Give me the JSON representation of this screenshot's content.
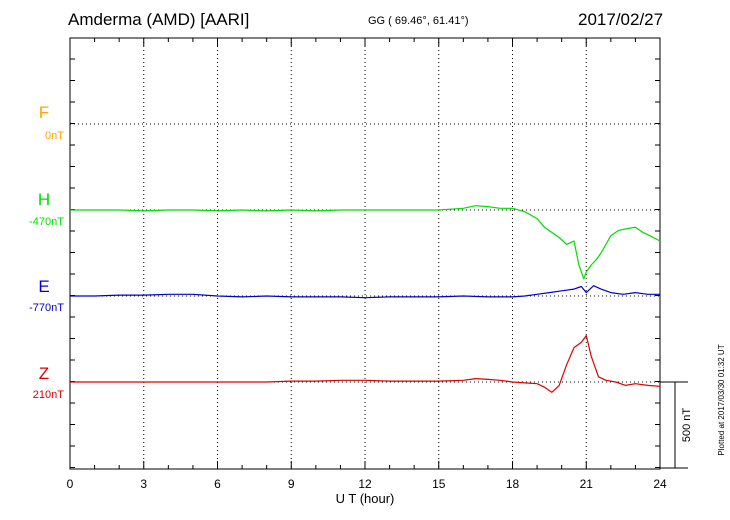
{
  "header": {
    "station": "Amderma (AMD)  [AARI]",
    "coords": "GG ( 69.46°,  61.41°)",
    "date": "2017/02/27"
  },
  "footer": {
    "plotted_at": "Plotted at 2017/03/30 01:32 UT"
  },
  "scale_bar": {
    "label": "500 nT"
  },
  "colors": {
    "F": "#ffa500",
    "H": "#00dd00",
    "E": "#0000cc",
    "Z": "#dd0000",
    "axis": "#000000"
  },
  "chart_data": {
    "type": "line",
    "xlabel": "U T (hour)",
    "xlim": [
      0,
      24
    ],
    "x_ticks": [
      0,
      3,
      6,
      9,
      12,
      15,
      18,
      21,
      24
    ],
    "grid": true,
    "series": [
      {
        "name": "F",
        "offset_label": "0nT",
        "key": "F",
        "x": [],
        "y": []
      },
      {
        "name": "H",
        "offset_label": "-470nT",
        "key": "H",
        "x": [
          0,
          1,
          2,
          3,
          4,
          5,
          6,
          7,
          8,
          9,
          10,
          11,
          12,
          13,
          14,
          15,
          16,
          16.5,
          17,
          17.5,
          18,
          18.5,
          19,
          19.3,
          19.6,
          19.9,
          20.2,
          20.5,
          20.7,
          20.9,
          21.0,
          21.2,
          21.4,
          21.6,
          21.8,
          22.0,
          22.3,
          22.6,
          23.0,
          23.3,
          23.6,
          24
        ],
        "y": [
          0,
          0,
          0,
          -5,
          0,
          0,
          -5,
          0,
          -5,
          0,
          -5,
          0,
          0,
          0,
          0,
          0,
          10,
          25,
          20,
          10,
          10,
          -10,
          -50,
          -100,
          -130,
          -160,
          -200,
          -180,
          -320,
          -400,
          -360,
          -320,
          -290,
          -250,
          -200,
          -150,
          -120,
          -110,
          -100,
          -130,
          -150,
          -180
        ]
      },
      {
        "name": "E",
        "offset_label": "-770nT",
        "key": "E",
        "x": [
          0,
          1,
          2,
          3,
          4,
          5,
          6,
          7,
          8,
          9,
          10,
          11,
          12,
          13,
          14,
          15,
          16,
          17,
          18,
          18.5,
          19,
          19.5,
          20,
          20.5,
          20.8,
          21.0,
          21.3,
          21.6,
          22,
          22.5,
          23,
          23.5,
          24
        ],
        "y": [
          0,
          0,
          5,
          5,
          10,
          10,
          0,
          -5,
          0,
          -5,
          -5,
          -5,
          -10,
          -5,
          -5,
          -5,
          0,
          -5,
          -5,
          0,
          10,
          20,
          30,
          40,
          55,
          20,
          60,
          40,
          20,
          10,
          20,
          10,
          10
        ]
      },
      {
        "name": "Z",
        "offset_label": "210nT",
        "key": "Z",
        "x": [
          0,
          1,
          2,
          3,
          4,
          5,
          6,
          7,
          8,
          9,
          10,
          11,
          12,
          13,
          14,
          15,
          16,
          16.5,
          17,
          17.5,
          18,
          18.5,
          19,
          19.3,
          19.6,
          19.9,
          20.2,
          20.5,
          20.8,
          21.0,
          21.2,
          21.5,
          21.8,
          22.2,
          22.6,
          23.0,
          23.5,
          24
        ],
        "y": [
          0,
          0,
          0,
          0,
          0,
          0,
          0,
          0,
          0,
          5,
          5,
          10,
          10,
          5,
          5,
          5,
          10,
          20,
          15,
          10,
          0,
          -5,
          -10,
          -30,
          -60,
          -20,
          100,
          200,
          230,
          270,
          150,
          30,
          10,
          0,
          -20,
          -10,
          -20,
          -25
        ]
      }
    ]
  }
}
